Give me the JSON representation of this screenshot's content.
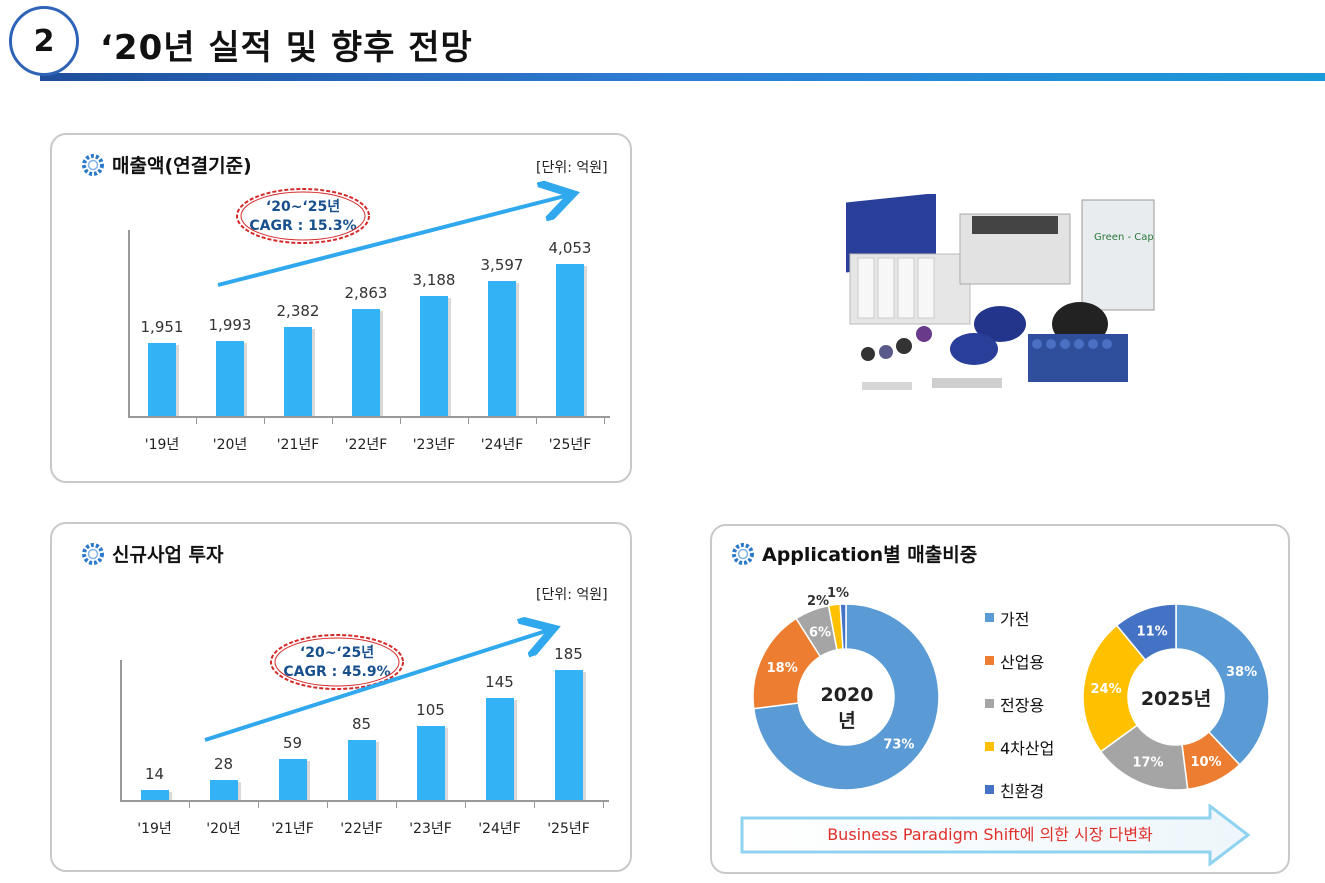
{
  "header": {
    "number": "2",
    "title": "‘20년 실적 및 향후 전망"
  },
  "revenue_panel": {
    "title": "매출액(연결기준)",
    "unit": "[단위: 억원]",
    "cagr_line1": "‘20~‘25년",
    "cagr_line2": "CAGR : 15.3%"
  },
  "invest_panel": {
    "title": "신규사업 투자",
    "unit": "[단위: 억원]",
    "cagr_line1": "‘20~‘25년",
    "cagr_line2": "CAGR : 45.9%"
  },
  "app_panel": {
    "title": "Application별 매출비중",
    "banner": "Business Paradigm Shift에 의한 시장 다변화"
  },
  "colors": {
    "bar": "#33b2f5",
    "cagr_text": "#17508d",
    "ellipse": "#d42a2a",
    "arrow": "#2fa8ee",
    "header_rule": "#2e7fd6"
  },
  "chart_data": [
    {
      "type": "bar",
      "title": "매출액(연결기준)",
      "categories": [
        "'19년",
        "'20년",
        "'21년F",
        "'22년F",
        "'23년F",
        "'24년F",
        "'25년F"
      ],
      "values": [
        1951,
        1993,
        2382,
        2863,
        3188,
        3597,
        4053
      ],
      "value_labels": [
        "1,951",
        "1,993",
        "2,382",
        "2,863",
        "3,188",
        "3,597",
        "4,053"
      ],
      "ylim": [
        0,
        5200
      ],
      "grid": false
    },
    {
      "type": "bar",
      "title": "신규사업 투자",
      "categories": [
        "'19년",
        "'20년",
        "'21년F",
        "'22년F",
        "'23년F",
        "'24년F",
        "'25년F"
      ],
      "values": [
        14,
        28,
        59,
        85,
        105,
        145,
        185
      ],
      "value_labels": [
        "14",
        "28",
        "59",
        "85",
        "105",
        "145",
        "185"
      ],
      "ylim": [
        0,
        285
      ],
      "grid": false
    },
    {
      "type": "pie",
      "center_label": "2020년",
      "labels": [
        "가전",
        "산업용",
        "전장용",
        "4차산업",
        "친환경"
      ],
      "values": [
        73,
        18,
        6,
        2,
        1
      ],
      "value_labels": [
        "73%",
        "18%",
        "6%",
        "2%",
        "1%"
      ],
      "colors": [
        "#5b9bd5",
        "#ed7d31",
        "#a5a5a5",
        "#ffc000",
        "#4472c4"
      ]
    },
    {
      "type": "pie",
      "center_label": "2025년",
      "labels": [
        "가전",
        "산업용",
        "전장용",
        "4차산업",
        "친환경"
      ],
      "values": [
        38,
        10,
        17,
        24,
        11
      ],
      "value_labels": [
        "38%",
        "10%",
        "17%",
        "24%",
        "11%"
      ],
      "colors": [
        "#5b9bd5",
        "#ed7d31",
        "#a5a5a5",
        "#ffc000",
        "#4472c4"
      ]
    }
  ]
}
